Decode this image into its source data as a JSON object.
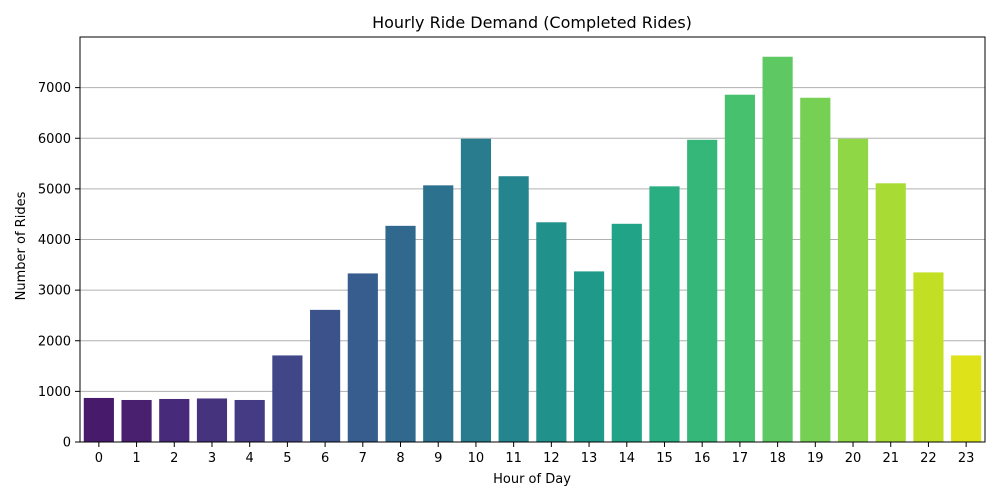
{
  "chart_data": {
    "type": "bar",
    "title": "Hourly Ride Demand (Completed Rides)",
    "xlabel": "Hour of Day",
    "ylabel": "Number of Rides",
    "categories": [
      "0",
      "1",
      "2",
      "3",
      "4",
      "5",
      "6",
      "7",
      "8",
      "9",
      "10",
      "11",
      "12",
      "13",
      "14",
      "15",
      "16",
      "17",
      "18",
      "19",
      "20",
      "21",
      "22",
      "23"
    ],
    "values": [
      870,
      830,
      850,
      860,
      830,
      1710,
      2610,
      3330,
      4270,
      5070,
      5990,
      5250,
      4340,
      3370,
      4310,
      5050,
      5970,
      6860,
      7610,
      6800,
      5990,
      5110,
      3350,
      1710
    ],
    "ylim": [
      0,
      8000
    ],
    "yticks": [
      0,
      1000,
      2000,
      3000,
      4000,
      5000,
      6000,
      7000
    ],
    "grid": "y",
    "legend": "none",
    "colors": [
      "#481a6c",
      "#48206f",
      "#472a7a",
      "#46337e",
      "#443b84",
      "#404688",
      "#3b528b",
      "#365d8d",
      "#31688e",
      "#2c728e",
      "#287c8e",
      "#25858e",
      "#21918c",
      "#1f9a8a",
      "#20a386",
      "#28ae80",
      "#35b779",
      "#48c16e",
      "#5ec962",
      "#75d054",
      "#8fd744",
      "#a8db34",
      "#c2df23",
      "#dde318"
    ]
  }
}
